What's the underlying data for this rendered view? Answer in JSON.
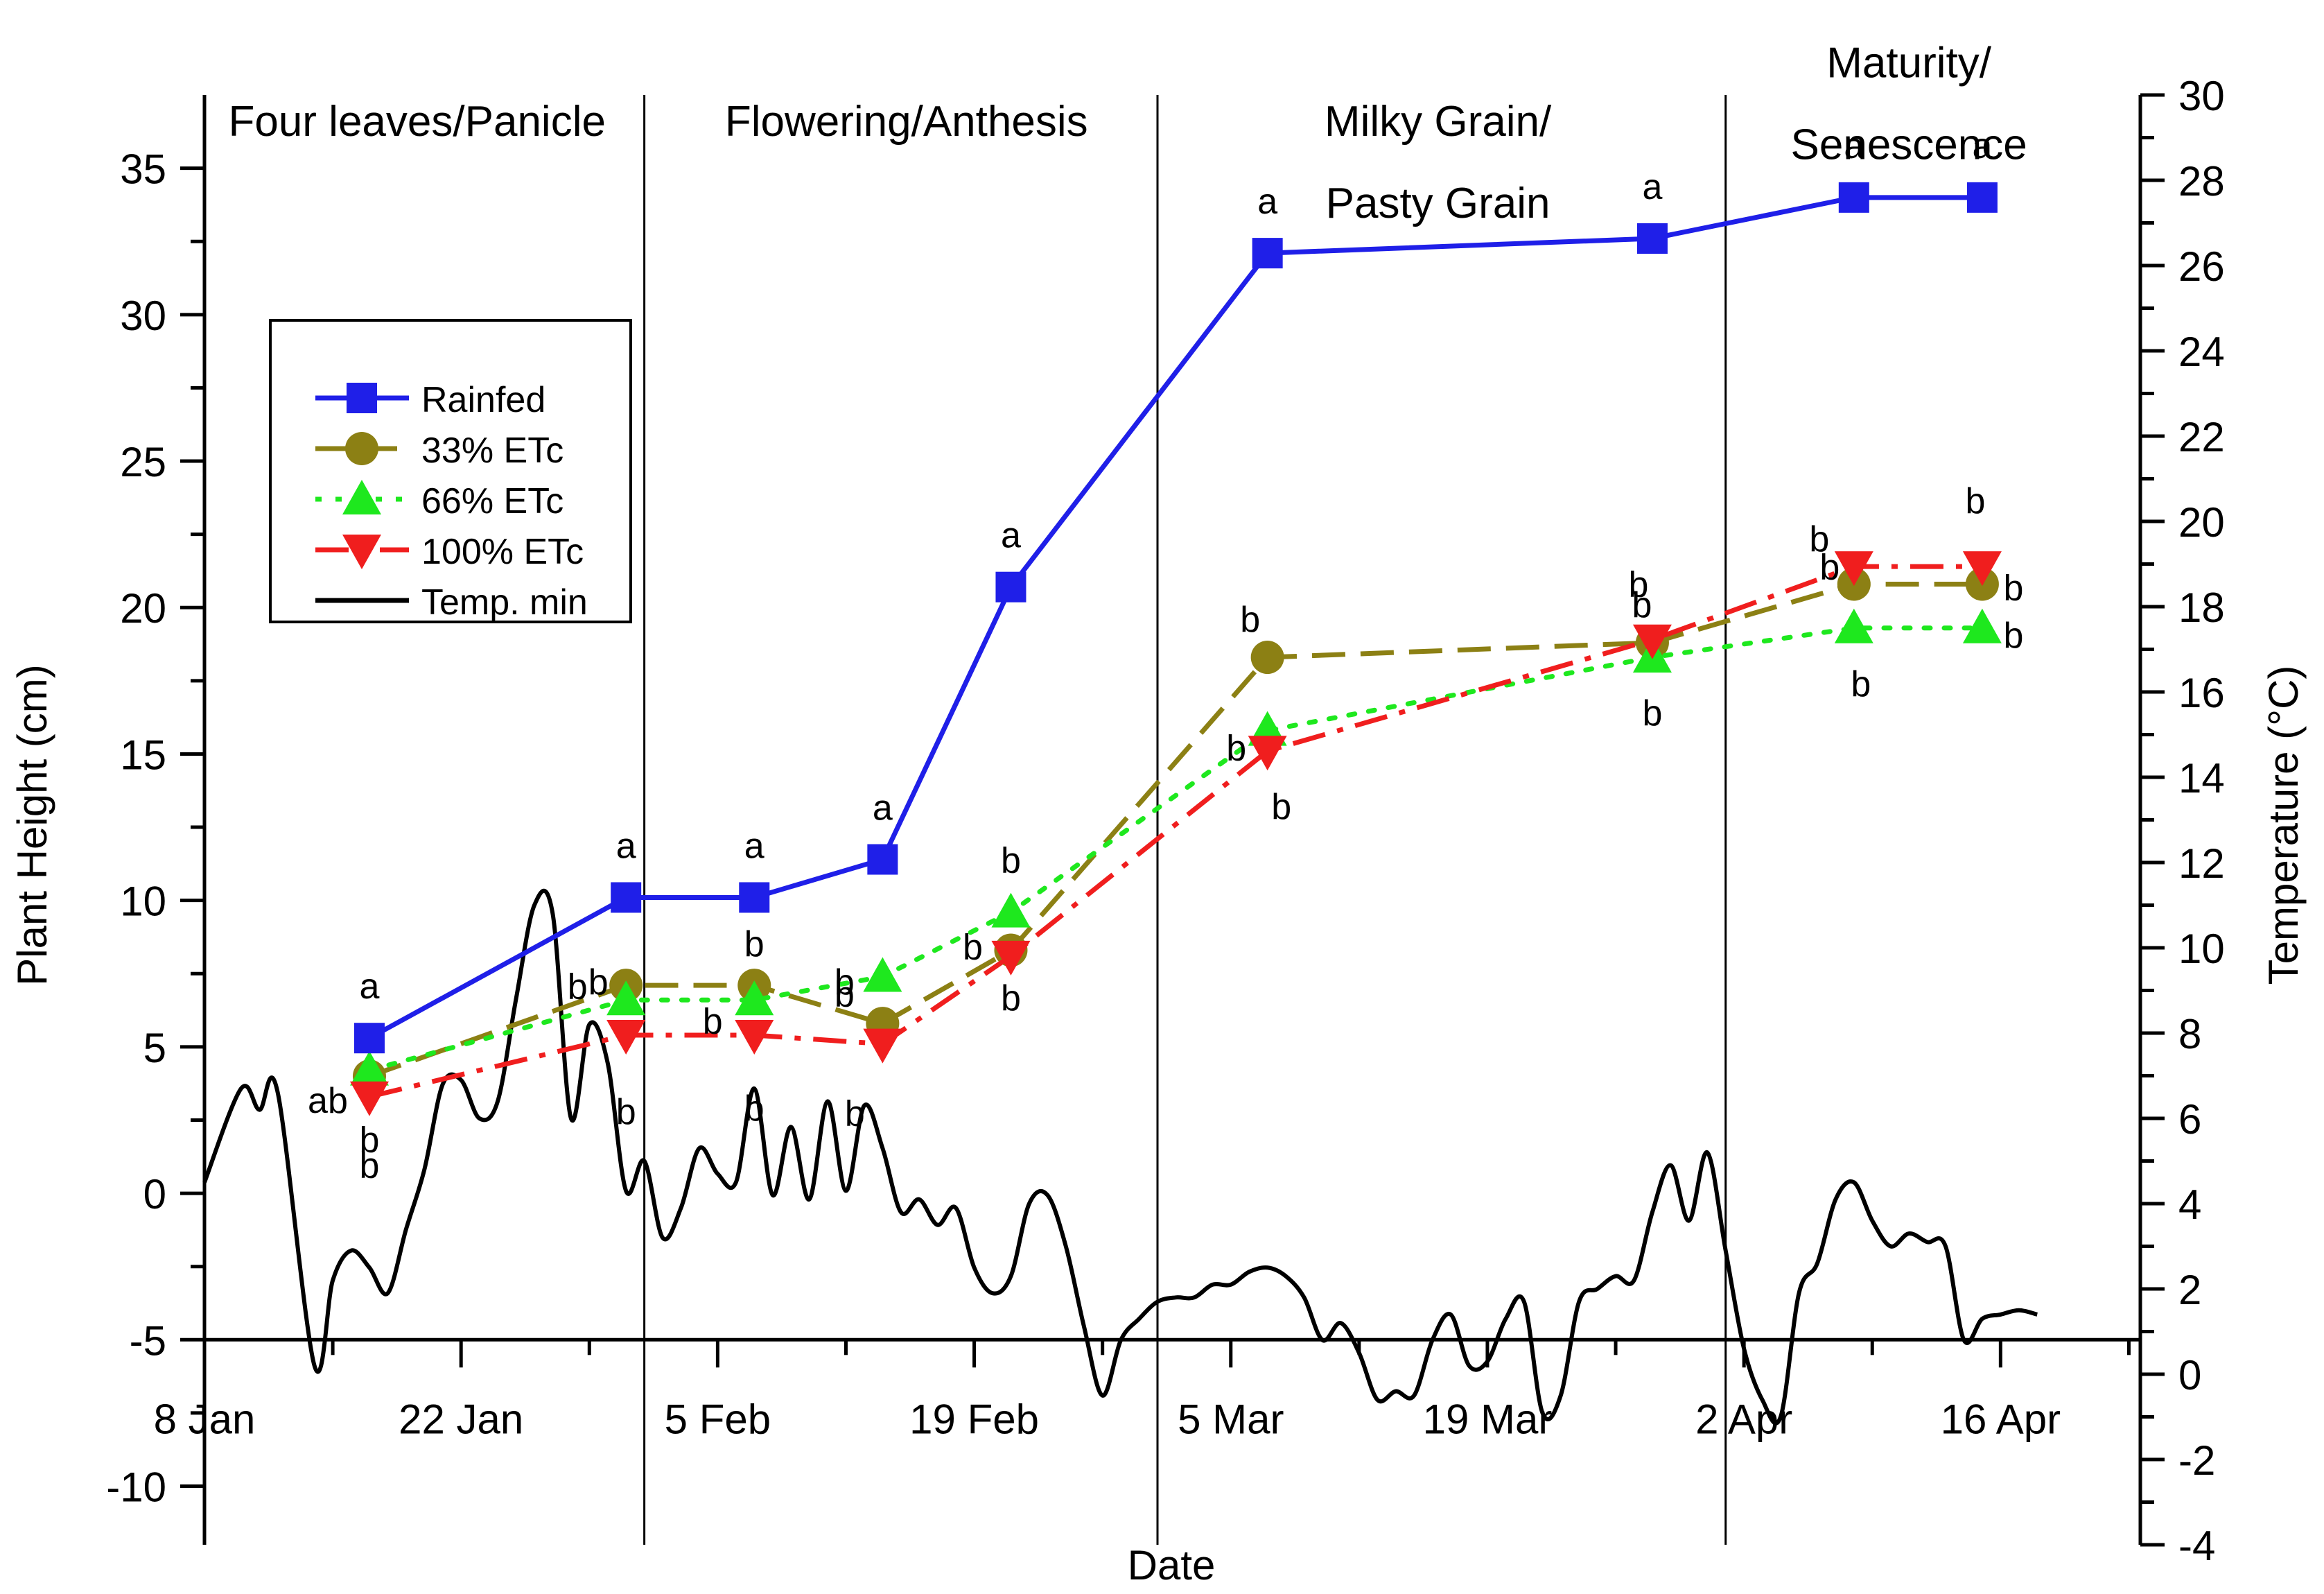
{
  "chart_data": {
    "type": "line",
    "x_type": "date",
    "year": 2015,
    "xlabel": "Date",
    "ylabel": "Plant Height (cm)",
    "y2label": "Temperature (°C)",
    "x_range_days": [
      8,
      112
    ],
    "ylim": [
      -12,
      37.5
    ],
    "y2lim": [
      -4,
      30
    ],
    "x_ticks": [
      {
        "day": 8,
        "label": "8 Jan"
      },
      {
        "day": 22,
        "label": "22 Jan"
      },
      {
        "day": 36,
        "label": "5 Feb"
      },
      {
        "day": 50,
        "label": "19 Feb"
      },
      {
        "day": 64,
        "label": "5 Mar"
      },
      {
        "day": 78,
        "label": "19 Mar"
      },
      {
        "day": 92,
        "label": "2 Apr"
      },
      {
        "day": 106,
        "label": "16 Apr"
      }
    ],
    "y_ticks": [
      -10,
      -5,
      0,
      5,
      10,
      15,
      20,
      25,
      30,
      35
    ],
    "y2_ticks": [
      -4,
      -2,
      0,
      2,
      4,
      6,
      8,
      10,
      12,
      14,
      16,
      18,
      20,
      22,
      24,
      26,
      28,
      30
    ],
    "stage_dividers_day": [
      32,
      60,
      91
    ],
    "stages": [
      {
        "lines": [
          "Four leaves/Panicle"
        ],
        "day": 19.6,
        "y": 36.1
      },
      {
        "lines": [
          "Flowering/Anthesis"
        ],
        "day": 46.3,
        "y": 36.1
      },
      {
        "lines": [
          "Milky Grain/",
          "Pasty Grain"
        ],
        "day": 75.3,
        "y": 36.1
      },
      {
        "lines": [
          "Maturity/",
          "Senescence"
        ],
        "day": 101,
        "y": 38.1
      }
    ],
    "series": [
      {
        "name": "Rainfed",
        "color": "#1f1fe8",
        "marker": "square",
        "dash": "solid",
        "x": [
          17,
          31,
          38,
          45,
          52,
          66,
          87,
          98,
          105
        ],
        "y": [
          5.3,
          10.1,
          10.1,
          11.4,
          20.7,
          32.1,
          32.6,
          34.0,
          34.0
        ],
        "labels": [
          "a",
          "a",
          "a",
          "a",
          "a",
          "a",
          "a",
          "a",
          "a"
        ]
      },
      {
        "name": "33% ETc",
        "color": "#8c8014",
        "marker": "circle",
        "dash": "dashed",
        "x": [
          17,
          31,
          38,
          45,
          52,
          66,
          87,
          98,
          105
        ],
        "y": [
          4.0,
          7.1,
          7.1,
          5.8,
          8.3,
          18.3,
          18.8,
          20.8,
          20.8
        ],
        "labels": [
          "ab",
          "b",
          "b",
          "b",
          "b",
          "b",
          "b",
          "b",
          "b"
        ]
      },
      {
        "name": "66% ETc",
        "color": "#1ee81e",
        "marker": "triangle-up",
        "dash": "dotted",
        "x": [
          17,
          31,
          38,
          45,
          52,
          66,
          87,
          98,
          105
        ],
        "y": [
          4.2,
          6.6,
          6.6,
          7.4,
          9.6,
          15.8,
          18.3,
          19.3,
          19.3
        ],
        "labels": [
          "b",
          "b",
          "b",
          "b",
          "b",
          "b",
          "b",
          "b",
          "b"
        ]
      },
      {
        "name": "100% ETc",
        "color": "#f01e1e",
        "marker": "triangle-down",
        "dash": "dashdot",
        "x": [
          17,
          31,
          38,
          45,
          52,
          66,
          87,
          98,
          105
        ],
        "y": [
          3.3,
          5.4,
          5.4,
          5.1,
          8.1,
          15.1,
          18.9,
          21.4,
          21.4
        ],
        "labels": [
          "b",
          "b",
          "b",
          "b",
          "b",
          "b",
          "b",
          "b",
          "b"
        ]
      },
      {
        "name": "Temp. min",
        "color": "#000000",
        "marker": "none",
        "dash": "solid",
        "axis": "right",
        "x": [
          8,
          10,
          11,
          12,
          14,
          15,
          16,
          17,
          18,
          19,
          20,
          21,
          22,
          23,
          24,
          25,
          26,
          27,
          28,
          29,
          30,
          31,
          32,
          33,
          34,
          35,
          36,
          37,
          38,
          39,
          40,
          41,
          42,
          43,
          44,
          45,
          46,
          47,
          48,
          49,
          50,
          51,
          52,
          53,
          54,
          55,
          56,
          57,
          58,
          59,
          60,
          61,
          62,
          63,
          64,
          65,
          66,
          67,
          68,
          69,
          70,
          71,
          72,
          73,
          74,
          75,
          76,
          77,
          78,
          79,
          80,
          81,
          82,
          83,
          84,
          85,
          86,
          87,
          88,
          89,
          90,
          91,
          92,
          93,
          94,
          95,
          96,
          97,
          98,
          99,
          100,
          101,
          102,
          103,
          104,
          105,
          106,
          107,
          108
        ],
        "y": [
          4.5,
          6.7,
          6.2,
          6.6,
          0.2,
          2.2,
          2.9,
          2.5,
          1.9,
          3.4,
          4.8,
          6.8,
          6.9,
          6.0,
          6.4,
          8.8,
          11.0,
          10.8,
          6.0,
          8.2,
          7.3,
          4.3,
          5.0,
          3.2,
          3.9,
          5.3,
          4.7,
          4.5,
          6.7,
          4.2,
          5.8,
          4.1,
          6.4,
          4.3,
          6.3,
          5.3,
          3.8,
          4.1,
          3.5,
          3.9,
          2.5,
          1.9,
          2.3,
          4.0,
          4.2,
          3.0,
          1.1,
          -0.5,
          0.8,
          1.3,
          1.7,
          1.8,
          1.8,
          2.1,
          2.1,
          2.4,
          2.5,
          2.3,
          1.8,
          0.8,
          1.2,
          0.5,
          -0.6,
          -0.4,
          -0.5,
          0.8,
          1.4,
          0.2,
          0.3,
          1.3,
          1.7,
          -0.9,
          -0.5,
          1.7,
          2.0,
          2.3,
          2.2,
          3.8,
          4.9,
          3.6,
          5.2,
          2.9,
          0.6,
          -0.6,
          -1.0,
          1.9,
          2.6,
          4.1,
          4.5,
          3.6,
          3.0,
          3.3,
          3.1,
          3.0,
          0.8,
          1.3,
          1.4,
          1.5,
          1.4
        ]
      }
    ],
    "legend_position": "upper-left"
  }
}
